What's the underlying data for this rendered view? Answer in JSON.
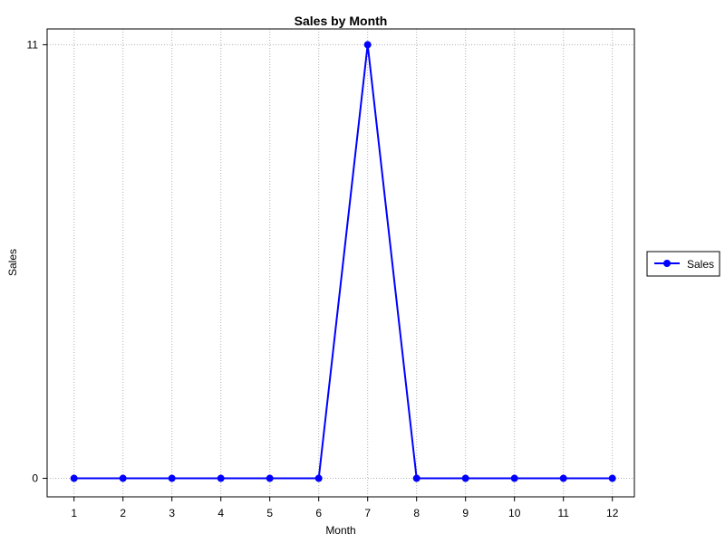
{
  "chart_data": {
    "type": "line",
    "title": "Sales by Month",
    "xlabel": "Month",
    "ylabel": "Sales",
    "x": [
      1,
      2,
      3,
      4,
      5,
      6,
      7,
      8,
      9,
      10,
      11,
      12
    ],
    "x_tick_labels": [
      "1",
      "2",
      "3",
      "4",
      "5",
      "6",
      "7",
      "8",
      "9",
      "10",
      "11",
      "12"
    ],
    "y_ticks": [
      0,
      11
    ],
    "y_tick_labels": [
      "0",
      "11"
    ],
    "xlim": [
      0.45,
      12.45
    ],
    "ylim": [
      -0.47,
      11.4
    ],
    "grid": true,
    "legend_position": "right",
    "series": [
      {
        "name": "Sales",
        "values": [
          0,
          0,
          0,
          0,
          0,
          0,
          11,
          0,
          0,
          0,
          0,
          0
        ],
        "color": "#0000ff",
        "marker": "circle"
      }
    ]
  }
}
